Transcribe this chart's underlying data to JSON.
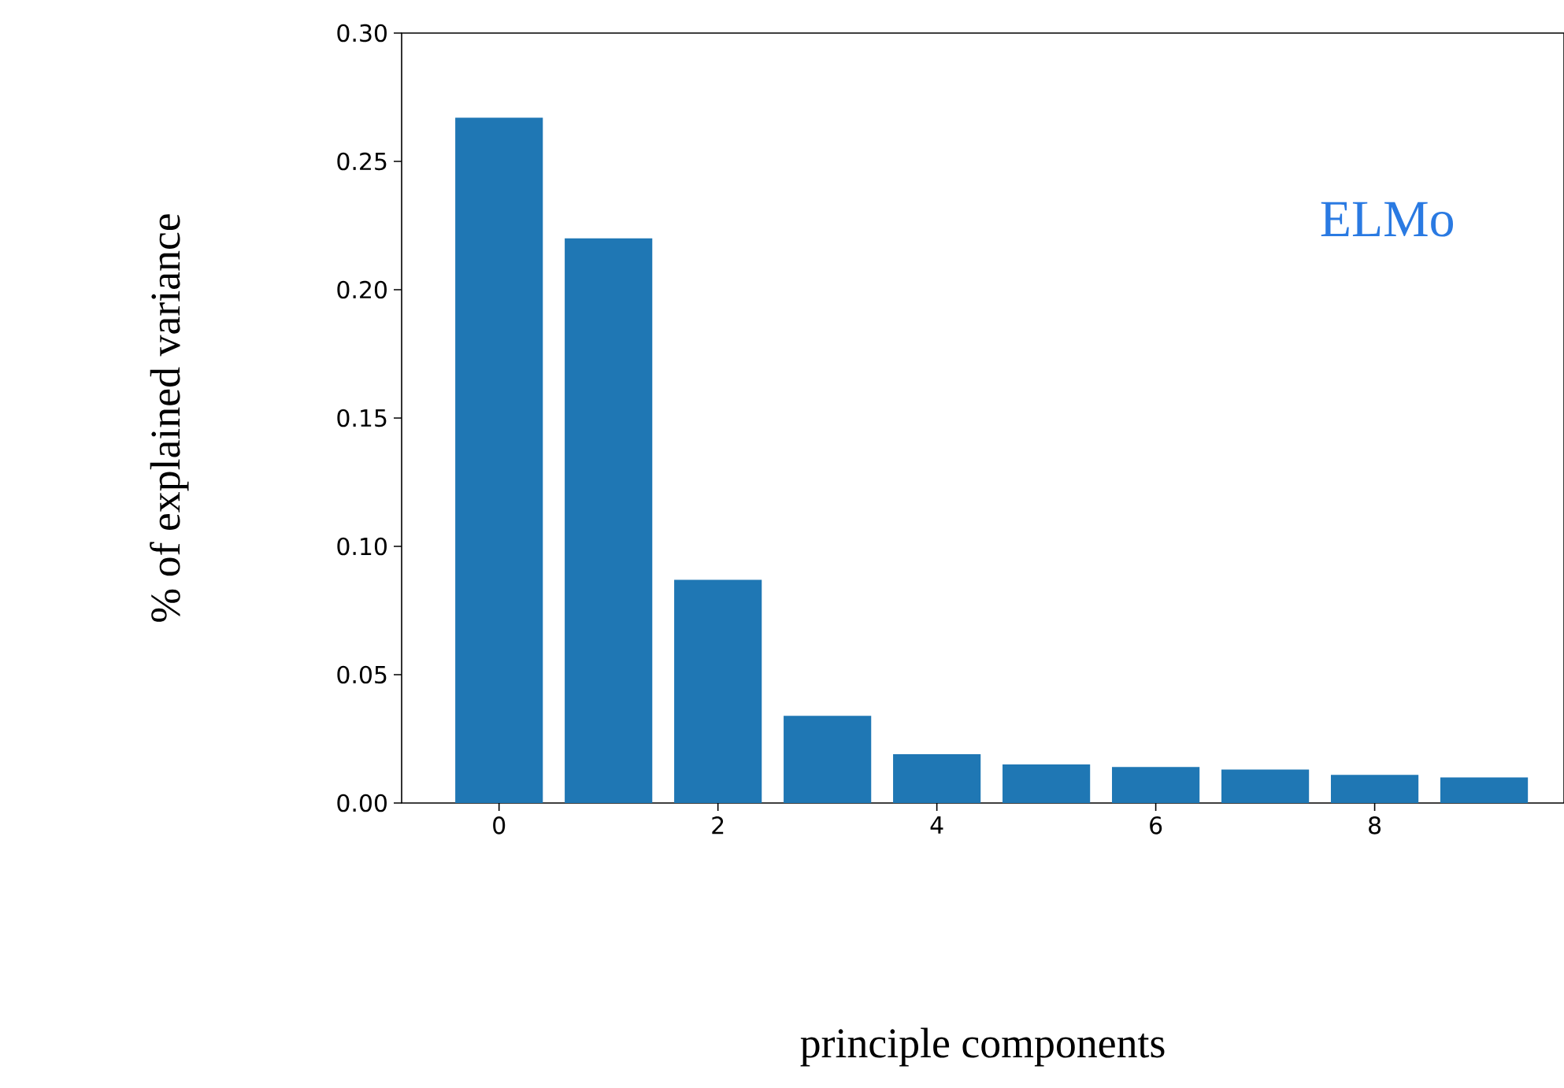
{
  "chart_data": {
    "type": "bar",
    "xlabel": "principle components",
    "ylabel": "% of explained variance",
    "x": [
      0,
      1,
      2,
      3,
      4,
      5,
      6,
      7,
      8,
      9
    ],
    "values": [
      0.267,
      0.22,
      0.087,
      0.034,
      0.019,
      0.015,
      0.014,
      0.013,
      0.011,
      0.01
    ],
    "color": "#1f77b4",
    "xlim": [
      -0.89,
      9.73
    ],
    "xticks": [
      0,
      2,
      4,
      6,
      8
    ],
    "ylim": [
      0,
      0.3
    ],
    "yticks": [
      {
        "value": 0,
        "label": "0.00"
      },
      {
        "value": 0.05,
        "label": "0.05"
      },
      {
        "value": 0.1,
        "label": "0.10"
      },
      {
        "value": 0.15,
        "label": "0.15"
      },
      {
        "value": 0.2,
        "label": "0.20"
      },
      {
        "value": 0.25,
        "label": "0.25"
      },
      {
        "value": 0.3,
        "label": "0.30"
      }
    ],
    "annotations": [
      "ELMo"
    ],
    "grid": false
  }
}
